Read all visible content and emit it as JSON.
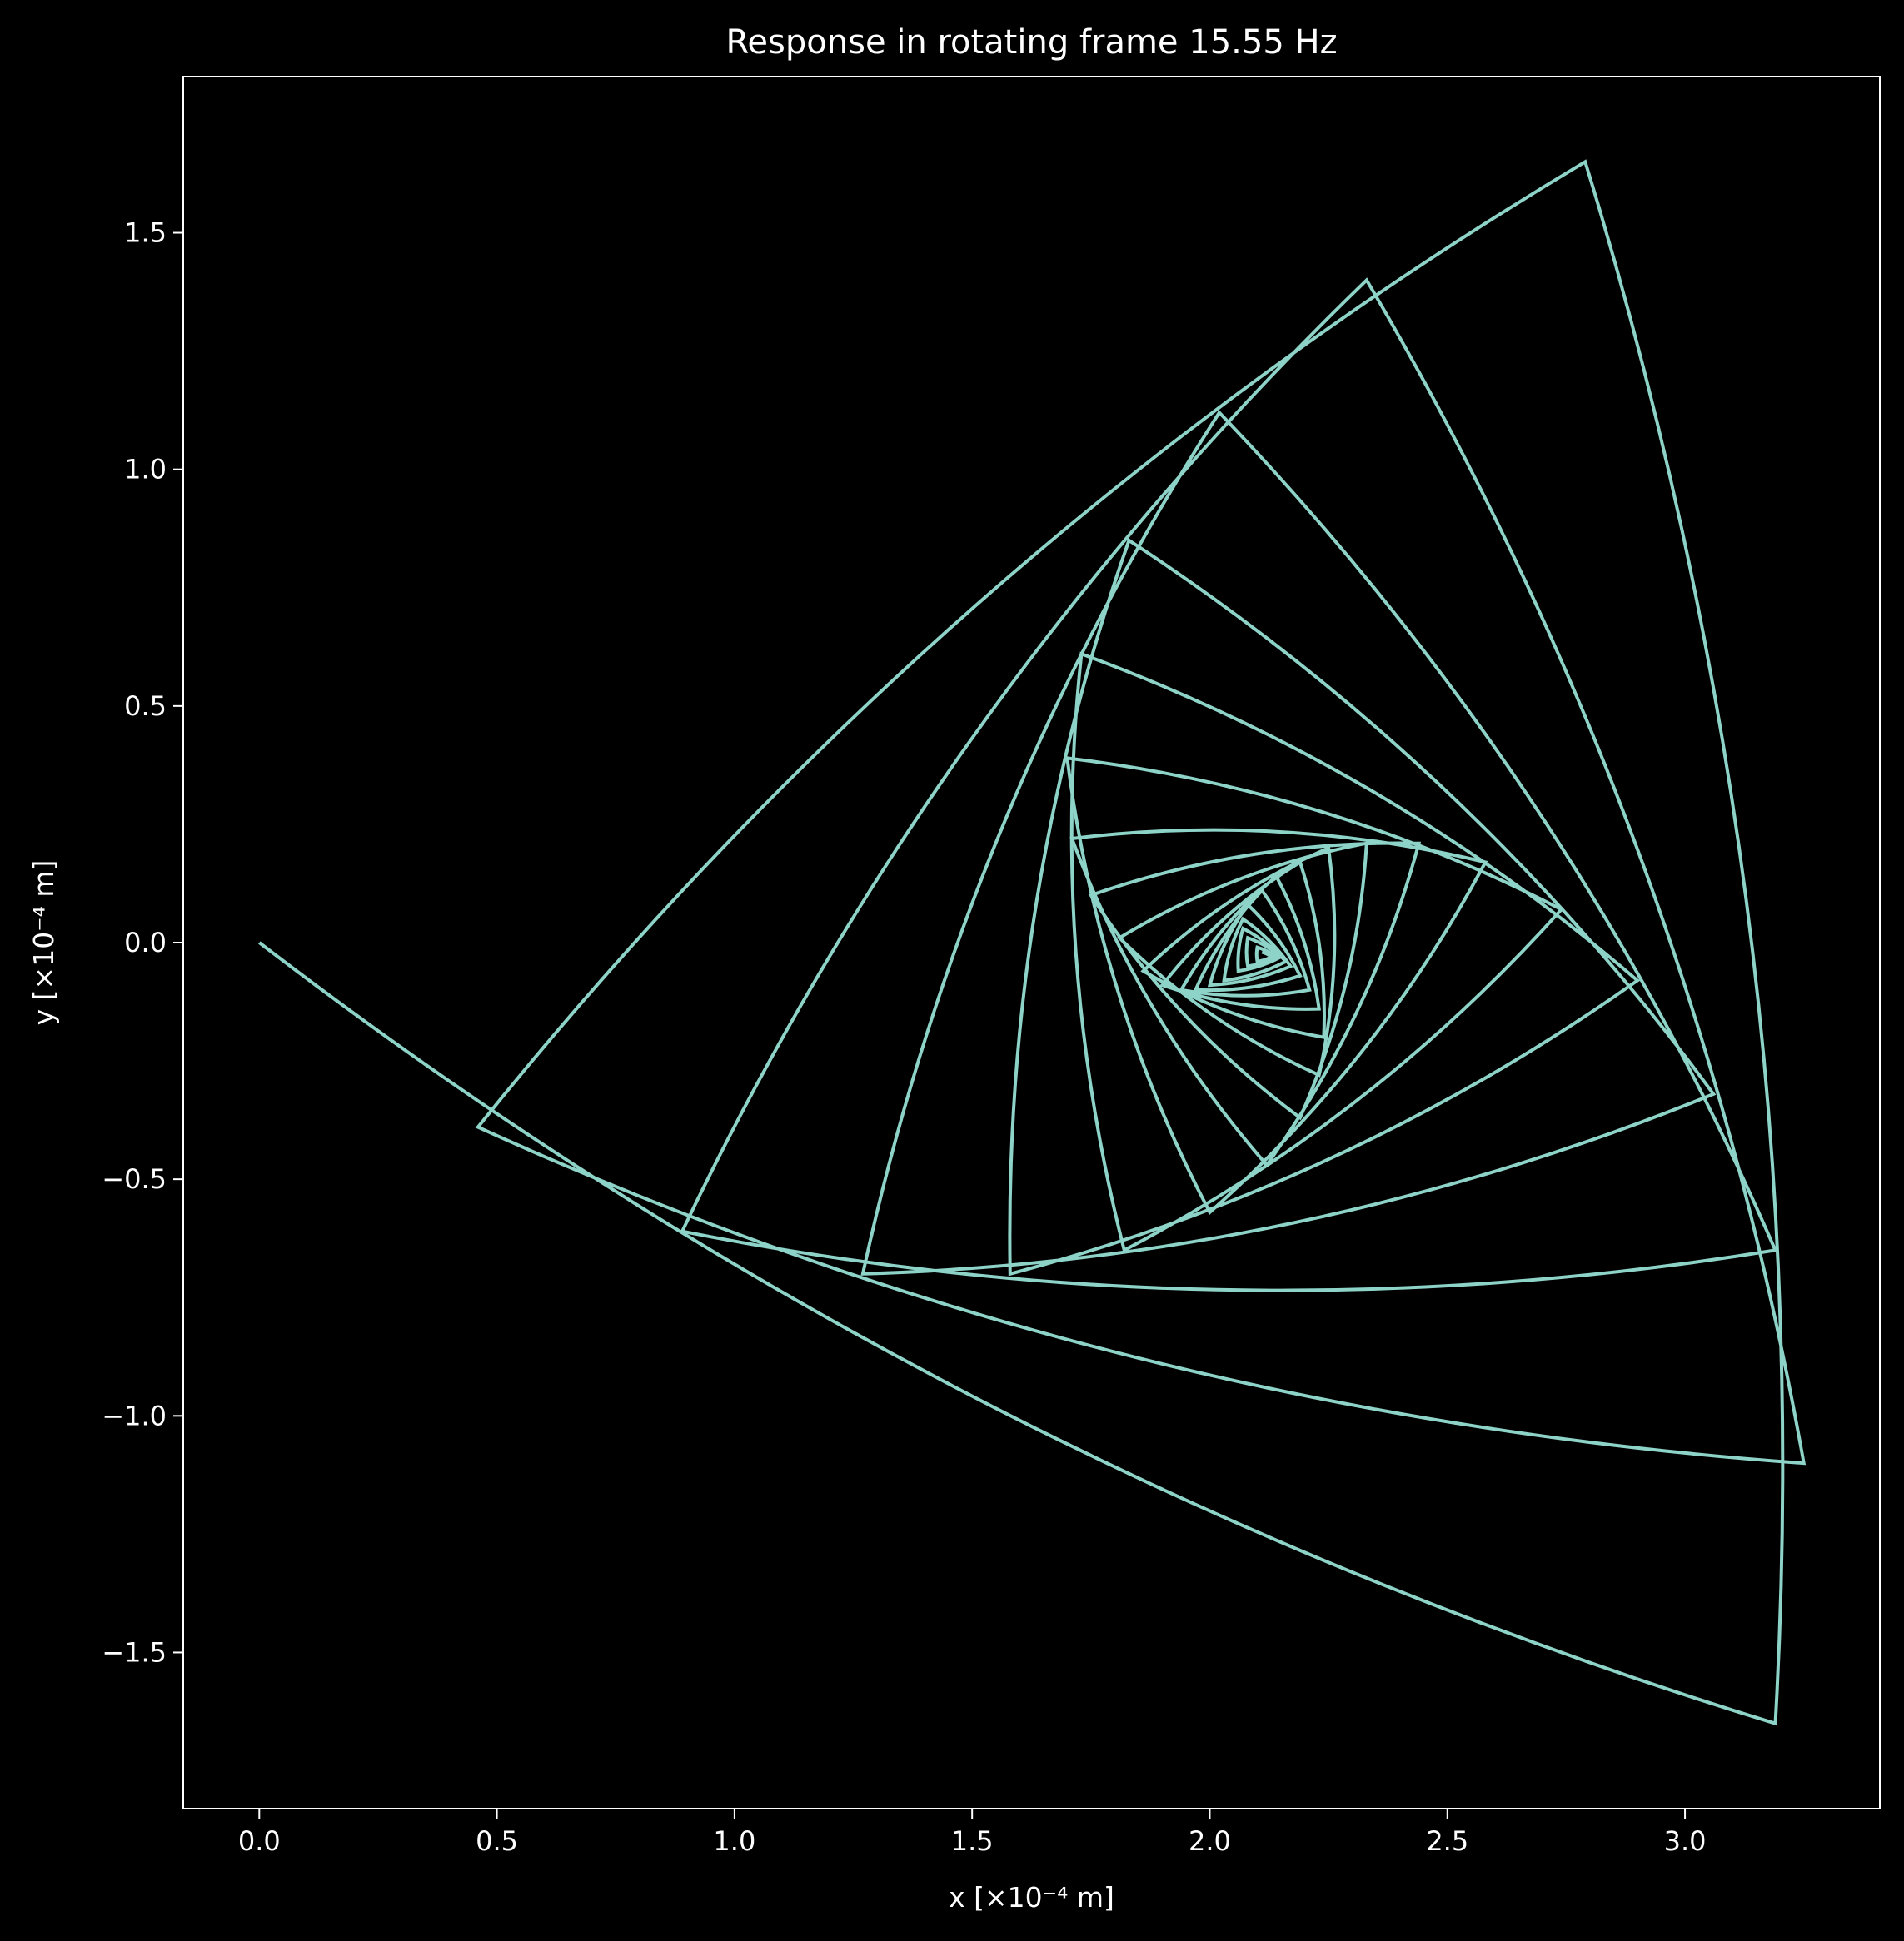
{
  "chart_data": {
    "type": "line",
    "title": "Response in rotating frame 15.55 Hz",
    "xlabel": "x [×10⁻⁴ m]",
    "ylabel": "y [×10⁻⁴ m]",
    "xlim": [
      -0.16,
      3.41
    ],
    "ylim": [
      -1.83,
      1.83
    ],
    "xticks": [
      0.0,
      0.5,
      1.0,
      1.5,
      2.0,
      2.5,
      3.0
    ],
    "xtick_labels": [
      "0.0",
      "0.5",
      "1.0",
      "1.5",
      "2.0",
      "2.5",
      "3.0"
    ],
    "yticks": [
      1.5,
      1.0,
      0.5,
      0.0,
      -0.5,
      -1.0,
      -1.5
    ],
    "ytick_labels": [
      "1.5",
      "1.0",
      "0.5",
      "0.0",
      "−0.5",
      "−1.0",
      "−1.5"
    ],
    "grid": false,
    "background": "#000000",
    "series": [
      {
        "color": "#8dd3c7",
        "cusps": [
          [
            0.0,
            0.0
          ],
          [
            3.19,
            -1.65
          ],
          [
            2.79,
            1.65
          ],
          [
            0.46,
            -0.39
          ],
          [
            3.25,
            -1.1
          ],
          [
            2.33,
            1.4
          ],
          [
            0.89,
            -0.61
          ],
          [
            3.19,
            -0.65
          ],
          [
            2.02,
            1.12
          ],
          [
            1.27,
            -0.7
          ],
          [
            3.06,
            -0.32
          ],
          [
            1.83,
            0.85
          ],
          [
            1.58,
            -0.7
          ],
          [
            2.9,
            -0.08
          ],
          [
            1.73,
            0.61
          ],
          [
            1.82,
            -0.65
          ],
          [
            2.74,
            0.07
          ],
          [
            1.7,
            0.39
          ],
          [
            2.0,
            -0.57
          ],
          [
            2.58,
            0.17
          ],
          [
            1.71,
            0.22
          ],
          [
            2.12,
            -0.47
          ],
          [
            2.44,
            0.21
          ],
          [
            1.75,
            0.1
          ],
          [
            2.19,
            -0.37
          ],
          [
            2.33,
            0.21
          ],
          [
            1.81,
            0.01
          ],
          [
            2.23,
            -0.28
          ],
          [
            2.25,
            0.2
          ],
          [
            1.86,
            -0.06
          ],
          [
            2.24,
            -0.2
          ],
          [
            2.19,
            0.17
          ],
          [
            1.9,
            -0.09
          ],
          [
            2.23,
            -0.14
          ],
          [
            2.14,
            0.14
          ],
          [
            1.94,
            -0.1
          ],
          [
            2.21,
            -0.1
          ],
          [
            2.11,
            0.11
          ],
          [
            1.97,
            -0.1
          ],
          [
            2.19,
            -0.07
          ],
          [
            2.08,
            0.08
          ],
          [
            2.0,
            -0.09
          ],
          [
            2.17,
            -0.05
          ],
          [
            2.07,
            0.05
          ],
          [
            2.03,
            -0.08
          ],
          [
            2.16,
            -0.04
          ],
          [
            2.07,
            0.03
          ],
          [
            2.06,
            -0.06
          ],
          [
            2.15,
            -0.03
          ],
          [
            2.08,
            0.01
          ],
          [
            2.08,
            -0.05
          ],
          [
            2.14,
            -0.03
          ],
          [
            2.1,
            -0.01
          ],
          [
            2.1,
            -0.04
          ],
          [
            2.13,
            -0.03
          ],
          [
            2.11,
            -0.02
          ]
        ]
      }
    ]
  }
}
